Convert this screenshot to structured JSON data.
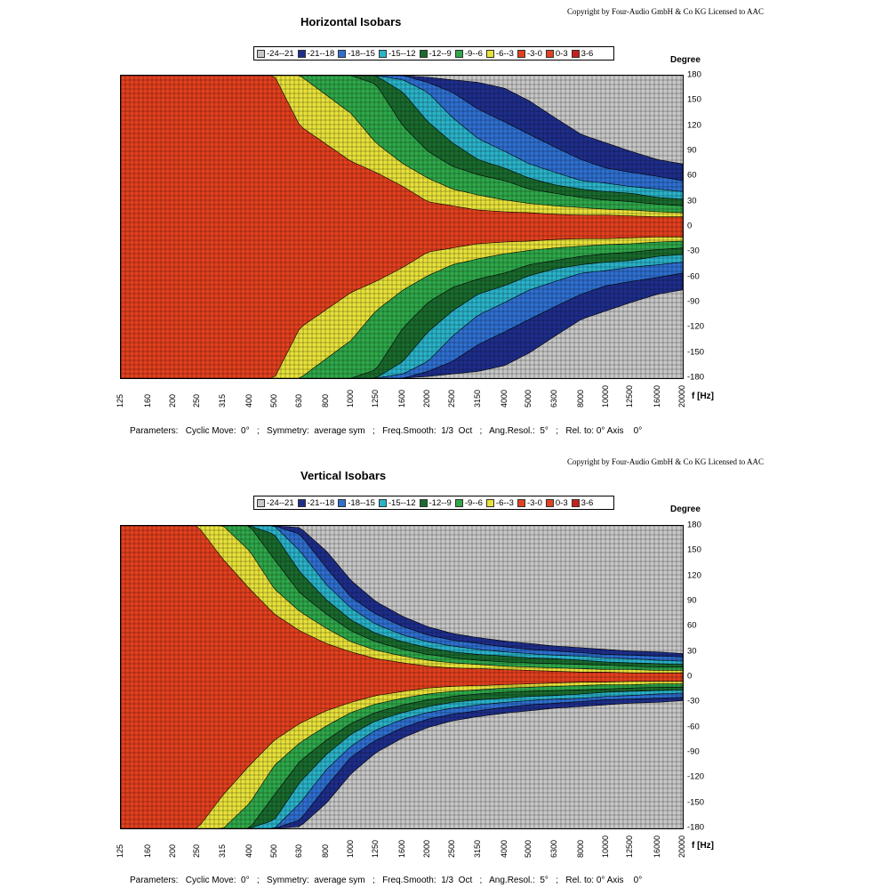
{
  "chart_data": [
    {
      "type": "heatmap",
      "title": "Horizontal Isobars",
      "copyright": "Copyright by Four-Audio GmbH & Co KG   Licensed to AAC",
      "ylabel": "Degree",
      "xlabel": "f [Hz]",
      "x_scale": "log",
      "x_ticks": [
        "125",
        "160",
        "200",
        "250",
        "315",
        "400",
        "500",
        "630",
        "800",
        "1000",
        "1250",
        "1600",
        "2000",
        "2500",
        "3150",
        "4000",
        "5000",
        "6300",
        "8000",
        "10000",
        "12500",
        "16000",
        "20000"
      ],
      "y_ticks": [
        "180",
        "150",
        "120",
        "90",
        "60",
        "30",
        "0",
        "-30",
        "-60",
        "-90",
        "-120",
        "-150",
        "-180"
      ],
      "ylim": [
        -180,
        180
      ],
      "grid": true,
      "legend": [
        "-24--21",
        "-21--18",
        "-18--15",
        "-15--12",
        "-12--9",
        "-9--6",
        "-6--3",
        "-3-0",
        "0-3",
        "3-6"
      ],
      "levels_db": [
        -3,
        -6,
        -9,
        -12,
        -15,
        -18,
        -21
      ],
      "beamwidth_deg": {
        "freq_hz": [
          125,
          500,
          630,
          1000,
          1250,
          1600,
          2000,
          2500,
          3150,
          4000,
          5000,
          6300,
          8000,
          10000,
          12500,
          16000,
          20000
        ],
        "level_-3": [
          180,
          180,
          120,
          78,
          65,
          48,
          30,
          25,
          20,
          18,
          17,
          15,
          14,
          14,
          13,
          12,
          12
        ],
        "level_-6": [
          180,
          180,
          180,
          135,
          100,
          75,
          58,
          45,
          38,
          32,
          28,
          25,
          23,
          21,
          20,
          18,
          17
        ],
        "level_-9": [
          180,
          180,
          180,
          180,
          170,
          120,
          90,
          72,
          62,
          55,
          45,
          40,
          35,
          32,
          30,
          27,
          25
        ],
        "level_-12": [
          180,
          180,
          180,
          180,
          180,
          160,
          125,
          100,
          80,
          70,
          58,
          50,
          45,
          42,
          40,
          35,
          33
        ],
        "level_-15": [
          180,
          180,
          180,
          180,
          180,
          175,
          160,
          130,
          105,
          90,
          75,
          65,
          55,
          52,
          48,
          45,
          42
        ],
        "level_-18": [
          180,
          180,
          180,
          180,
          180,
          180,
          172,
          160,
          140,
          125,
          110,
          95,
          80,
          70,
          65,
          60,
          55
        ],
        "level_-21": [
          180,
          180,
          180,
          180,
          180,
          180,
          178,
          175,
          172,
          165,
          150,
          130,
          110,
          100,
          90,
          80,
          75
        ]
      },
      "parameters": "Parameters:   Cyclic Move:  0°   ;   Symmetry:  average sym   ;   Freq.Smooth:  1/3  Oct   ;   Ang.Resol.:  5°   ;   Rel. to: 0° Axis    0°"
    },
    {
      "type": "heatmap",
      "title": "Vertical Isobars",
      "copyright": "Copyright by Four-Audio GmbH & Co KG   Licensed to AAC",
      "ylabel": "Degree",
      "xlabel": "f [Hz]",
      "x_scale": "log",
      "x_ticks": [
        "125",
        "160",
        "200",
        "250",
        "315",
        "400",
        "500",
        "630",
        "800",
        "1000",
        "1250",
        "1600",
        "2000",
        "2500",
        "3150",
        "4000",
        "5000",
        "6300",
        "8000",
        "10000",
        "12500",
        "16000",
        "20000"
      ],
      "y_ticks": [
        "180",
        "150",
        "120",
        "90",
        "60",
        "30",
        "0",
        "-30",
        "-60",
        "-90",
        "-120",
        "-150",
        "-180"
      ],
      "ylim": [
        -180,
        180
      ],
      "grid": true,
      "legend": [
        "-24--21",
        "-21--18",
        "-18--15",
        "-15--12",
        "-12--9",
        "-9--6",
        "-6--3",
        "-3-0",
        "0-3",
        "3-6"
      ],
      "levels_db": [
        -3,
        -6,
        -9,
        -12,
        -15,
        -18,
        -21
      ],
      "beamwidth_deg": {
        "freq_hz": [
          125,
          250,
          315,
          400,
          500,
          630,
          800,
          1000,
          1250,
          1600,
          2000,
          2500,
          3150,
          4000,
          5000,
          6300,
          8000,
          10000,
          12500,
          16000,
          20000
        ],
        "level_-3": [
          180,
          180,
          140,
          105,
          75,
          55,
          40,
          30,
          22,
          17,
          13,
          11,
          10,
          9,
          8,
          7,
          6,
          6,
          5,
          5,
          5
        ],
        "level_-6": [
          180,
          180,
          180,
          150,
          105,
          78,
          58,
          42,
          32,
          25,
          20,
          17,
          15,
          13,
          12,
          11,
          10,
          9,
          9,
          8,
          8
        ],
        "level_-9": [
          180,
          180,
          180,
          180,
          140,
          100,
          75,
          55,
          42,
          33,
          27,
          23,
          20,
          18,
          17,
          16,
          15,
          14,
          13,
          12,
          12
        ],
        "level_-12": [
          180,
          180,
          180,
          180,
          170,
          125,
          92,
          68,
          52,
          42,
          35,
          30,
          27,
          25,
          23,
          22,
          20,
          18,
          17,
          16,
          15
        ],
        "level_-15": [
          180,
          180,
          180,
          180,
          180,
          150,
          110,
          82,
          63,
          50,
          42,
          37,
          33,
          30,
          28,
          26,
          25,
          23,
          22,
          20,
          19
        ],
        "level_-18": [
          180,
          180,
          180,
          180,
          180,
          170,
          130,
          95,
          75,
          60,
          50,
          44,
          40,
          36,
          33,
          31,
          29,
          27,
          26,
          25,
          24
        ],
        "level_-21": [
          180,
          180,
          180,
          180,
          180,
          178,
          150,
          115,
          90,
          72,
          60,
          52,
          47,
          43,
          40,
          37,
          35,
          33,
          31,
          30,
          28
        ]
      },
      "parameters": "Parameters:   Cyclic Move:  0°   ;   Symmetry:  average sym   ;   Freq.Smooth:  1/3  Oct   ;   Ang.Resol.:  5°   ;   Rel. to: 0° Axis    0°"
    }
  ],
  "colors": {
    "-24--21": "#c8c8c8",
    "-21--18": "#1f2e8c",
    "-18--15": "#2f6fd0",
    "-15--12": "#2ab3c9",
    "-12--9": "#1a6b2e",
    "-9--6": "#2fa84a",
    "-6--3": "#e8e23a",
    "-3-0": "#e3401e",
    "0-3": "#e3401e",
    "3-6": "#c81e1e"
  }
}
